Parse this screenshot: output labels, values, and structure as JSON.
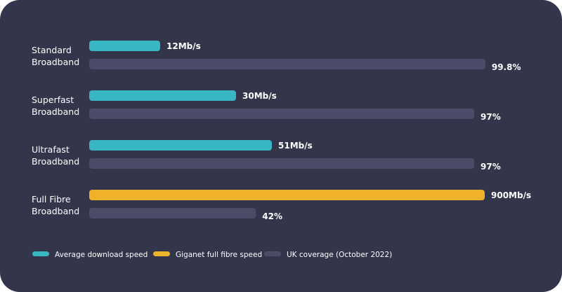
{
  "chart_data": {
    "type": "bar",
    "orientation": "horizontal",
    "categories": [
      [
        "Standard",
        "Broadband"
      ],
      [
        "Superfast",
        "Broadband"
      ],
      [
        "Ultrafast",
        "Broadband"
      ],
      [
        "Full Fibre",
        "Broadband"
      ]
    ],
    "speed": {
      "values": [
        12,
        30,
        51,
        900
      ],
      "labels": [
        "12Mb/s",
        "30Mb/s",
        "51Mb/s",
        "900Mb/s"
      ],
      "colors": [
        "#38b6c4",
        "#38b6c4",
        "#38b6c4",
        "#f0b12b"
      ]
    },
    "coverage": {
      "values": [
        99.8,
        97,
        97,
        42
      ],
      "labels": [
        "99.8%",
        "97%",
        "97%",
        "42%"
      ],
      "color": "#4a4c68"
    },
    "legend": {
      "placement": "bottom-left",
      "items": [
        {
          "label": "Average download speed",
          "color": "#38b6c4"
        },
        {
          "label": "Giganet full fibre speed",
          "color": "#f0b12b"
        },
        {
          "label": "UK coverage (October 2022)",
          "color": "#4a4c68"
        }
      ]
    },
    "grid": false,
    "title": "",
    "xlabel": "",
    "ylabel": ""
  }
}
